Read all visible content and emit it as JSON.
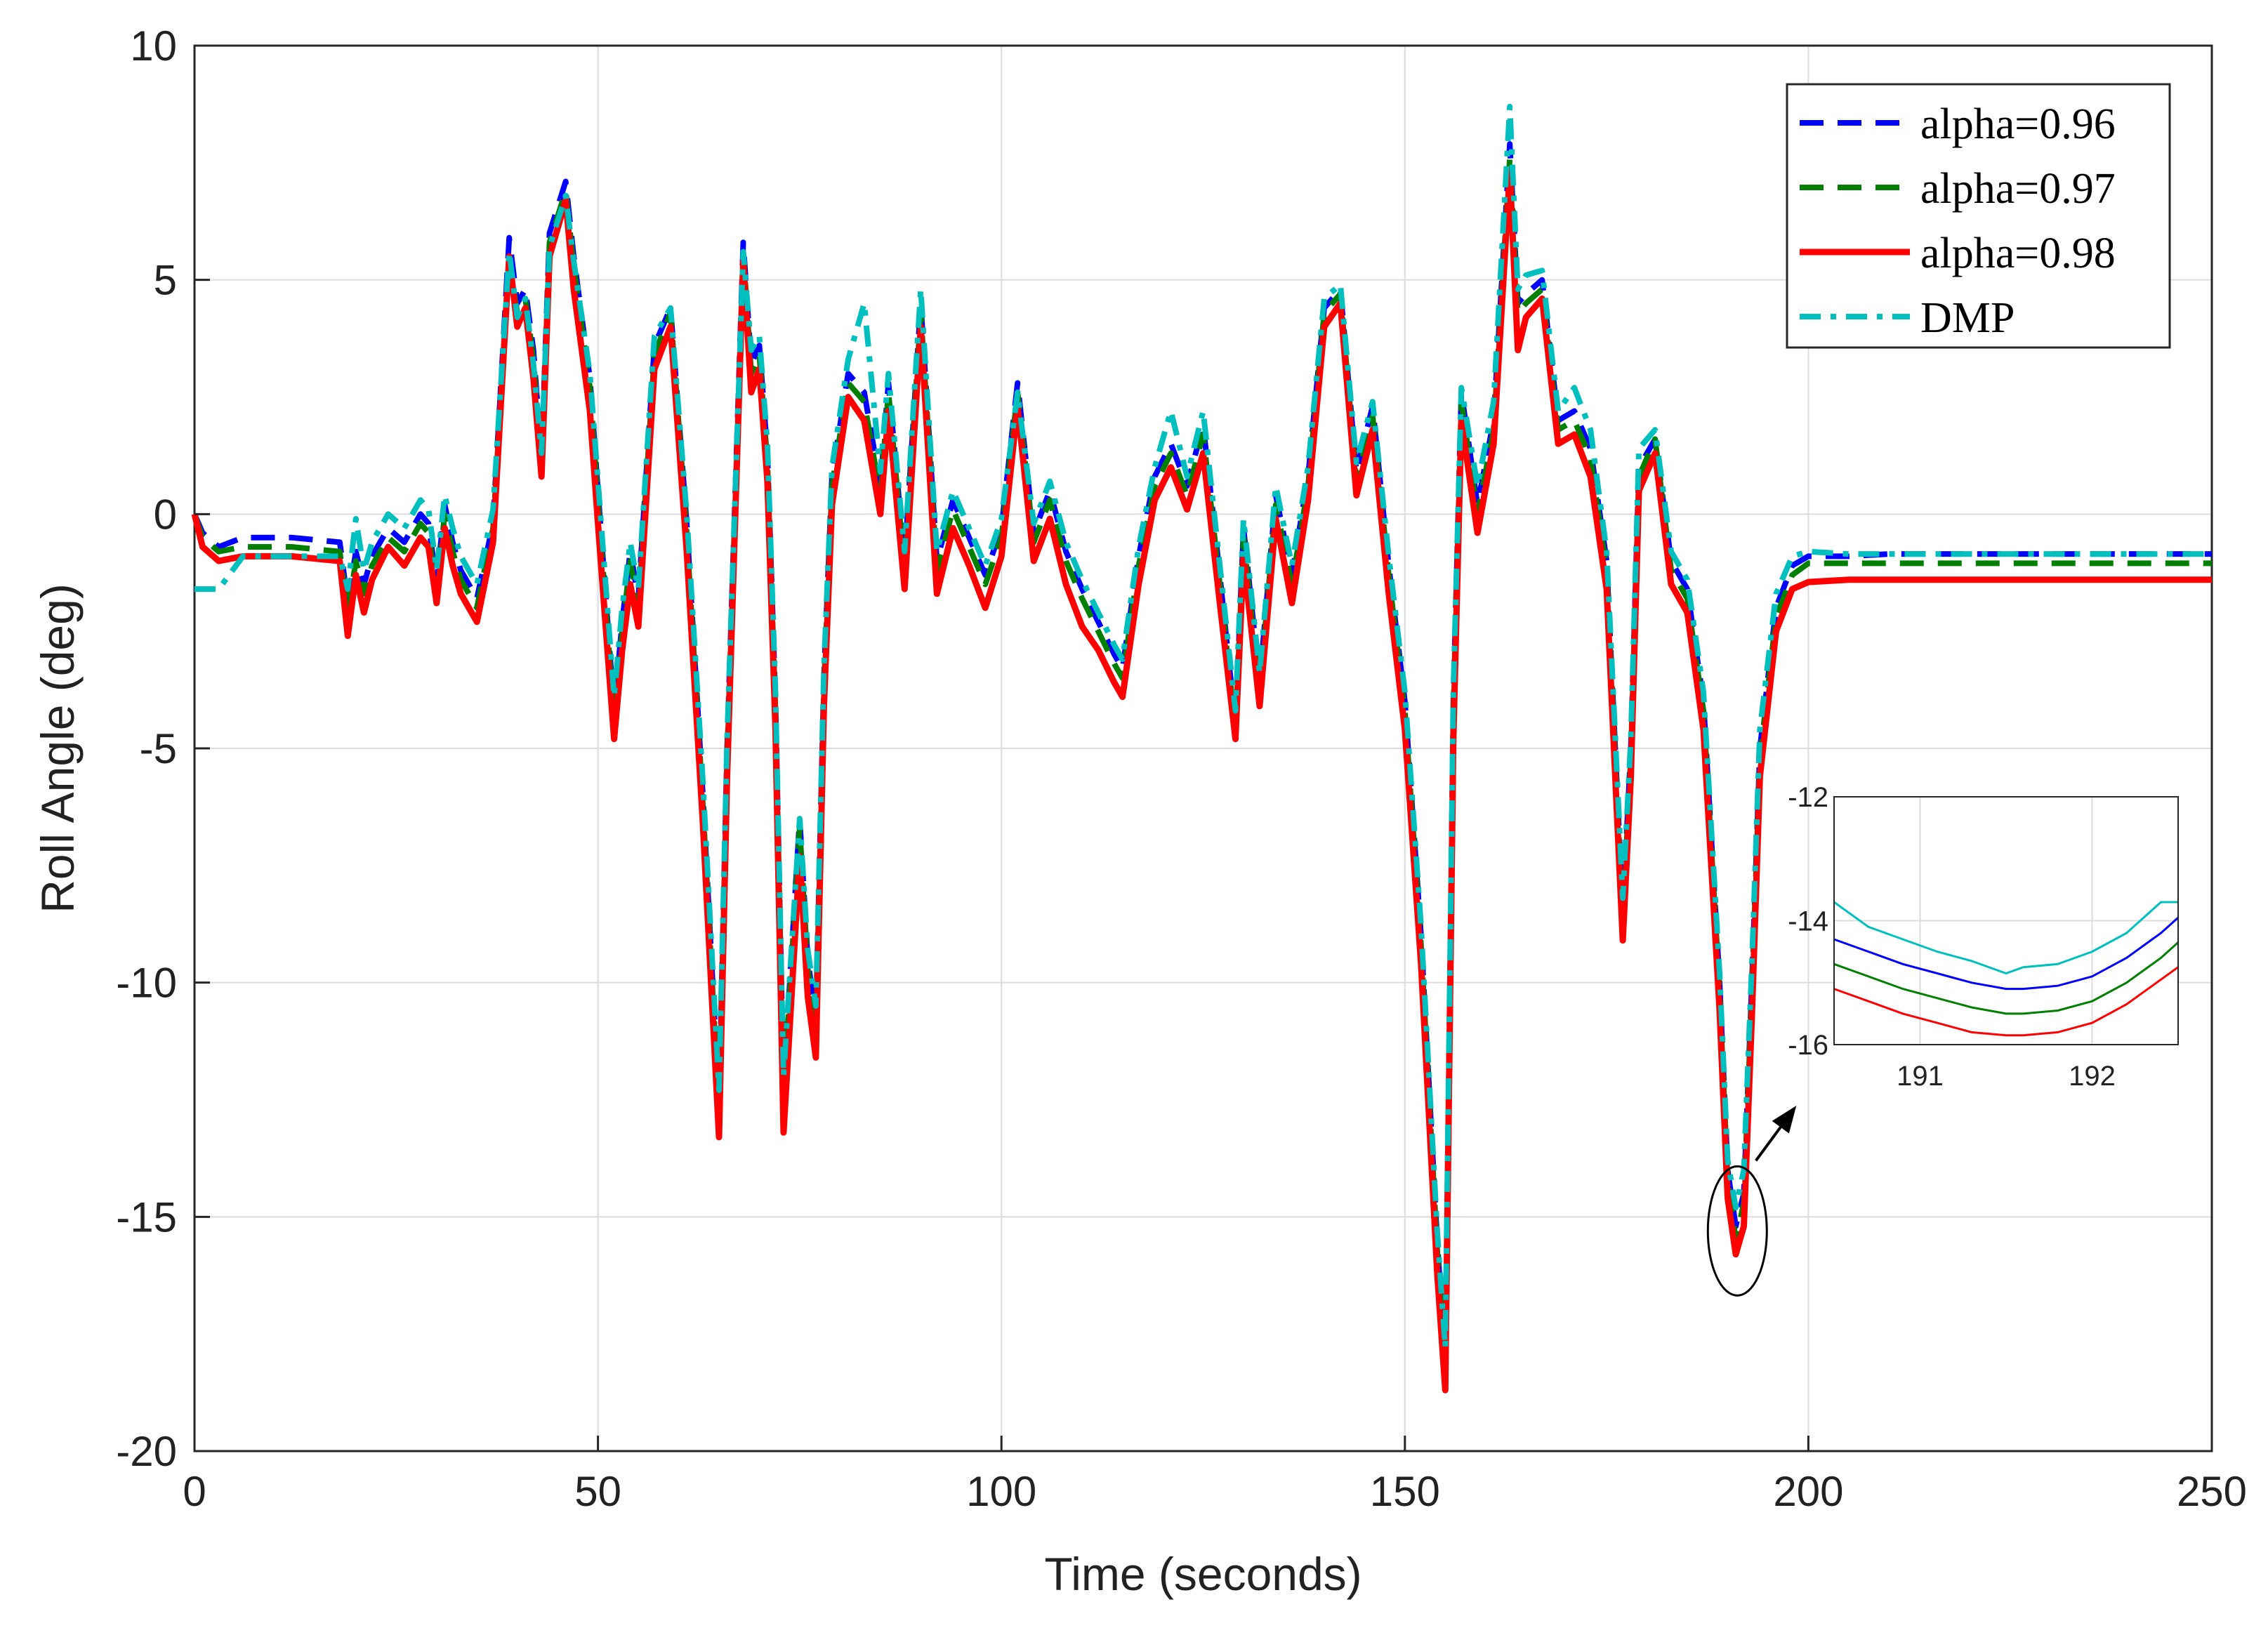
{
  "chart_data": [
    {
      "type": "line",
      "title": "",
      "xlabel": "Time (seconds)",
      "ylabel": "Roll Angle (deg)",
      "xlim": [
        0,
        250
      ],
      "ylim": [
        -20,
        10
      ],
      "xticks": [
        0,
        50,
        100,
        150,
        200,
        250
      ],
      "yticks": [
        -20,
        -15,
        -10,
        -5,
        0,
        5,
        10
      ],
      "xtick_labels": [
        "0",
        "50",
        "100",
        "150",
        "200",
        "250"
      ],
      "ytick_labels": [
        "-20",
        "-15",
        "-10",
        "-5",
        "0",
        "5",
        "10"
      ],
      "grid": true,
      "legend_position": "top-right",
      "x": [
        0,
        1,
        3,
        6,
        12,
        18,
        19,
        20,
        21,
        22,
        24,
        26,
        28,
        29,
        30,
        31,
        32,
        33,
        35,
        37,
        39,
        40,
        41,
        42,
        43,
        44,
        46,
        47,
        49,
        50,
        52,
        53,
        54,
        55,
        57,
        59,
        61,
        63,
        65,
        66,
        68,
        69,
        70,
        71,
        72,
        73,
        75,
        76,
        77,
        78,
        79,
        81,
        83,
        85,
        86,
        88,
        90,
        92,
        94,
        96,
        98,
        100,
        102,
        104,
        106,
        108,
        110,
        112,
        114,
        115,
        117,
        119,
        121,
        123,
        125,
        127,
        129,
        130,
        132,
        134,
        136,
        138,
        140,
        142,
        144,
        146,
        148,
        150,
        152,
        154,
        155,
        156,
        157,
        159,
        161,
        163,
        164,
        165,
        167,
        169,
        171,
        173,
        175,
        177,
        178,
        179,
        181,
        183,
        185,
        187,
        189,
        190,
        191,
        192,
        193,
        194,
        196,
        198,
        200,
        205,
        210,
        220,
        230,
        240,
        250
      ],
      "series": [
        {
          "name": "alpha=0.96",
          "color": "#0000ff",
          "dash": "dashed",
          "values": [
            0,
            -0.4,
            -0.7,
            -0.5,
            -0.5,
            -0.6,
            -1.9,
            -0.8,
            -1.5,
            -0.9,
            -0.3,
            -0.6,
            0.0,
            -0.2,
            -1.5,
            0.2,
            -0.6,
            -1.2,
            -1.8,
            -0.2,
            5.9,
            4.5,
            4.8,
            3.5,
            1.2,
            6.0,
            7.1,
            5.5,
            2.9,
            0.5,
            -4.2,
            -2.3,
            -0.8,
            -1.8,
            3.6,
            4.4,
            -0.2,
            -6.0,
            -12.6,
            -5.0,
            5.8,
            3.2,
            3.6,
            1.3,
            -4.0,
            -12.2,
            -6.5,
            -9.5,
            -10.8,
            -3.5,
            0.8,
            3.0,
            2.6,
            0.6,
            2.8,
            -1.0,
            4.5,
            -1.0,
            0.3,
            -0.5,
            -1.3,
            -0.3,
            2.8,
            -0.4,
            0.5,
            -0.8,
            -1.6,
            -2.3,
            -3.0,
            -3.3,
            -0.9,
            0.8,
            1.5,
            0.6,
            1.9,
            -1.2,
            -4.5,
            -0.3,
            -3.6,
            0.4,
            -1.3,
            0.8,
            4.4,
            4.8,
            0.9,
            2.3,
            -1.1,
            -4.0,
            -9.0,
            -15.5,
            -18.2,
            -4.0,
            2.6,
            0.2,
            2.0,
            7.9,
            4.5,
            4.7,
            5.0,
            2.0,
            2.2,
            1.4,
            -1.0,
            -8.5,
            -5.0,
            1.0,
            1.6,
            -1.0,
            -1.6,
            -4.0,
            -10.0,
            -14.0,
            -15.2,
            -14.5,
            -10.0,
            -5.0,
            -2.0,
            -1.1,
            -0.9,
            -0.9,
            -0.85,
            -0.85,
            -0.85,
            -0.85,
            -0.85
          ]
        },
        {
          "name": "alpha=0.97",
          "color": "#007f00",
          "dash": "dashed",
          "values": [
            0,
            -0.5,
            -0.8,
            -0.7,
            -0.7,
            -0.8,
            -2.1,
            -1.0,
            -1.7,
            -1.1,
            -0.5,
            -0.8,
            -0.2,
            -0.4,
            -1.7,
            0.0,
            -0.8,
            -1.4,
            -2.0,
            -0.3,
            5.4,
            4.3,
            4.6,
            3.3,
            1.0,
            5.8,
            6.9,
            5.3,
            2.7,
            0.3,
            -4.4,
            -2.5,
            -1.0,
            -2.0,
            3.4,
            4.3,
            -0.4,
            -6.2,
            -12.8,
            -5.2,
            5.6,
            3.0,
            3.4,
            1.1,
            -4.2,
            -12.4,
            -6.7,
            -9.7,
            -11.0,
            -3.7,
            0.6,
            2.8,
            2.4,
            0.4,
            2.6,
            -1.2,
            4.3,
            -1.2,
            0.1,
            -0.7,
            -1.5,
            -0.5,
            2.6,
            -0.6,
            0.3,
            -1.0,
            -1.8,
            -2.5,
            -3.2,
            -3.5,
            -1.1,
            0.6,
            1.3,
            0.4,
            1.7,
            -1.4,
            -4.6,
            -0.5,
            -3.8,
            0.2,
            -1.5,
            0.6,
            4.3,
            4.7,
            0.7,
            2.1,
            -1.3,
            -4.2,
            -9.2,
            -15.7,
            -18.4,
            -4.2,
            2.4,
            0.0,
            1.8,
            7.6,
            4.3,
            4.5,
            4.8,
            1.8,
            2.0,
            1.2,
            -1.2,
            -8.7,
            -5.2,
            0.8,
            1.6,
            -1.2,
            -1.8,
            -4.2,
            -10.2,
            -14.2,
            -15.5,
            -14.7,
            -10.2,
            -5.2,
            -2.2,
            -1.3,
            -1.05,
            -1.05,
            -1.05,
            -1.05,
            -1.05,
            -1.05,
            -1.05
          ]
        },
        {
          "name": "alpha=0.98",
          "color": "#ff0000",
          "dash": "solid",
          "values": [
            0,
            -0.7,
            -1.0,
            -0.9,
            -0.9,
            -1.0,
            -2.6,
            -1.3,
            -2.1,
            -1.4,
            -0.7,
            -1.1,
            -0.5,
            -0.7,
            -1.9,
            -0.3,
            -1.1,
            -1.7,
            -2.3,
            -0.6,
            5.5,
            4.0,
            4.4,
            2.9,
            0.8,
            5.5,
            6.7,
            4.8,
            2.2,
            -0.2,
            -4.8,
            -2.9,
            -1.5,
            -2.4,
            3.1,
            4.0,
            -0.8,
            -6.6,
            -13.3,
            -5.6,
            5.4,
            2.6,
            3.1,
            0.7,
            -4.6,
            -13.2,
            -7.3,
            -10.3,
            -11.6,
            -4.1,
            0.2,
            2.5,
            2.0,
            0.0,
            2.2,
            -1.6,
            4.0,
            -1.7,
            -0.3,
            -1.1,
            -2.0,
            -0.9,
            2.3,
            -1.0,
            -0.1,
            -1.5,
            -2.4,
            -2.9,
            -3.6,
            -3.9,
            -1.5,
            0.3,
            1.0,
            0.1,
            1.3,
            -1.8,
            -4.8,
            -0.9,
            -4.1,
            -0.1,
            -1.9,
            0.3,
            4.0,
            4.5,
            0.4,
            1.8,
            -1.7,
            -4.6,
            -9.6,
            -16.2,
            -18.7,
            -4.8,
            2.0,
            -0.4,
            1.5,
            7.3,
            3.5,
            4.2,
            4.6,
            1.5,
            1.7,
            0.8,
            -1.6,
            -9.1,
            -5.6,
            0.5,
            1.3,
            -1.5,
            -2.1,
            -4.6,
            -10.6,
            -14.6,
            -15.8,
            -15.2,
            -10.7,
            -5.6,
            -2.5,
            -1.6,
            -1.45,
            -1.4,
            -1.4,
            -1.4,
            -1.4,
            -1.4,
            -1.4
          ]
        },
        {
          "name": "DMP",
          "color": "#00bfbf",
          "dash": "dashdot",
          "values": [
            -1.6,
            -1.6,
            -1.6,
            -0.9,
            -0.9,
            -0.9,
            -1.6,
            -0.1,
            -1.2,
            -0.6,
            0.0,
            -0.3,
            0.3,
            0.1,
            -1.2,
            0.4,
            -0.3,
            -0.9,
            -1.5,
            0.1,
            5.6,
            4.2,
            4.6,
            3.2,
            1.3,
            5.7,
            6.8,
            5.4,
            3.0,
            0.7,
            -3.9,
            -2.0,
            -0.6,
            -1.6,
            3.8,
            4.4,
            0.0,
            -5.7,
            -12.3,
            -4.8,
            5.6,
            3.5,
            3.8,
            1.5,
            -3.8,
            -12.0,
            -6.5,
            -9.3,
            -10.5,
            -3.3,
            1.0,
            3.3,
            4.5,
            0.9,
            3.0,
            -0.8,
            4.8,
            -0.8,
            0.5,
            -0.3,
            -1.1,
            -0.1,
            2.6,
            -0.2,
            0.7,
            -0.6,
            -1.4,
            -2.1,
            -2.8,
            -3.1,
            -0.7,
            1.0,
            2.2,
            0.8,
            2.2,
            -1.0,
            -4.2,
            -0.1,
            -3.4,
            0.6,
            -1.1,
            1.0,
            4.6,
            4.9,
            1.1,
            2.4,
            -0.9,
            -3.8,
            -8.8,
            -15.3,
            -17.8,
            -3.8,
            2.7,
            0.6,
            2.4,
            8.7,
            4.8,
            5.1,
            5.2,
            2.2,
            2.7,
            1.8,
            -0.8,
            -8.2,
            -4.8,
            1.4,
            1.8,
            -0.8,
            -1.4,
            -3.8,
            -9.8,
            -13.8,
            -14.8,
            -14.0,
            -9.6,
            -4.6,
            -1.7,
            -0.9,
            -0.8,
            -0.85,
            -0.85,
            -0.85,
            -0.85,
            -0.85,
            -0.85
          ]
        }
      ],
      "annotation": "ellipse around the minimum near t=191 with an arrow pointing to the zoomed inset"
    },
    {
      "type": "line",
      "title": "",
      "xlabel": "",
      "ylabel": "",
      "xlim": [
        190.5,
        192.5
      ],
      "ylim": [
        -16,
        -12
      ],
      "xticks": [
        191,
        192
      ],
      "yticks": [
        -16,
        -14,
        -12
      ],
      "xtick_labels": [
        "191",
        "192"
      ],
      "ytick_labels": [
        "-16",
        "-14",
        "-12"
      ],
      "grid": true,
      "legend_position": "none",
      "x": [
        190.5,
        190.7,
        190.9,
        191.1,
        191.3,
        191.5,
        191.6,
        191.8,
        192.0,
        192.2,
        192.4,
        192.5
      ],
      "series": [
        {
          "name": "alpha=0.96",
          "color": "#0000ff",
          "values": [
            -14.3,
            -14.5,
            -14.7,
            -14.85,
            -15.0,
            -15.1,
            -15.1,
            -15.05,
            -14.9,
            -14.6,
            -14.2,
            -13.95
          ]
        },
        {
          "name": "alpha=0.97",
          "color": "#007f00",
          "values": [
            -14.7,
            -14.9,
            -15.1,
            -15.25,
            -15.4,
            -15.5,
            -15.5,
            -15.45,
            -15.3,
            -15.0,
            -14.6,
            -14.35
          ]
        },
        {
          "name": "alpha=0.98",
          "color": "#ff0000",
          "values": [
            -15.1,
            -15.3,
            -15.5,
            -15.65,
            -15.8,
            -15.85,
            -15.85,
            -15.8,
            -15.65,
            -15.35,
            -14.95,
            -14.75
          ]
        },
        {
          "name": "DMP",
          "color": "#00bfbf",
          "values": [
            -13.7,
            -14.1,
            -14.3,
            -14.5,
            -14.65,
            -14.85,
            -14.75,
            -14.7,
            -14.5,
            -14.2,
            -13.7,
            -13.7
          ]
        }
      ]
    }
  ]
}
